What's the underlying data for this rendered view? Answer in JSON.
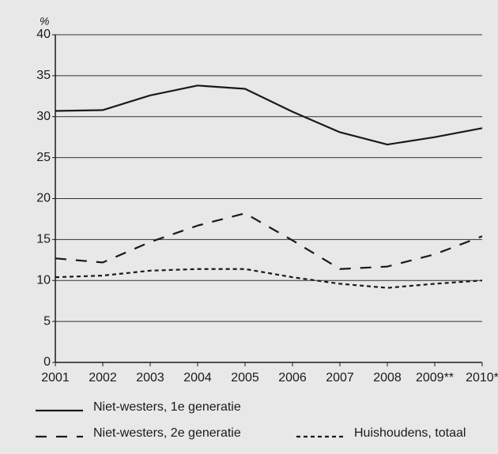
{
  "chart_data": {
    "type": "line",
    "y_label": "%",
    "categories": [
      "2001",
      "2002",
      "2003",
      "2004",
      "2005",
      "2006",
      "2007",
      "2008",
      "2009**",
      "2010*"
    ],
    "series": [
      {
        "name": "Niet-westers, 1e generatie",
        "color": "#1a1a1a",
        "style": "solid",
        "values": [
          30.7,
          30.8,
          32.6,
          33.8,
          33.4,
          30.6,
          28.1,
          26.6,
          27.5,
          28.6
        ]
      },
      {
        "name": "Niet-westers, 2e generatie",
        "color": "#1a1a1a",
        "style": "dashed",
        "values": [
          12.7,
          12.2,
          14.7,
          16.7,
          18.2,
          14.9,
          11.4,
          11.7,
          13.2,
          15.4
        ]
      },
      {
        "name": "Huishoudens, totaal",
        "color": "#1a1a1a",
        "style": "dotted",
        "values": [
          10.4,
          10.6,
          11.2,
          11.4,
          11.4,
          10.4,
          9.6,
          9.1,
          9.6,
          10.0
        ]
      }
    ],
    "ylim": [
      0,
      40
    ],
    "yticks": [
      0,
      5,
      10,
      15,
      20,
      25,
      30,
      35,
      40
    ],
    "grid": true,
    "legend": "bottom"
  }
}
